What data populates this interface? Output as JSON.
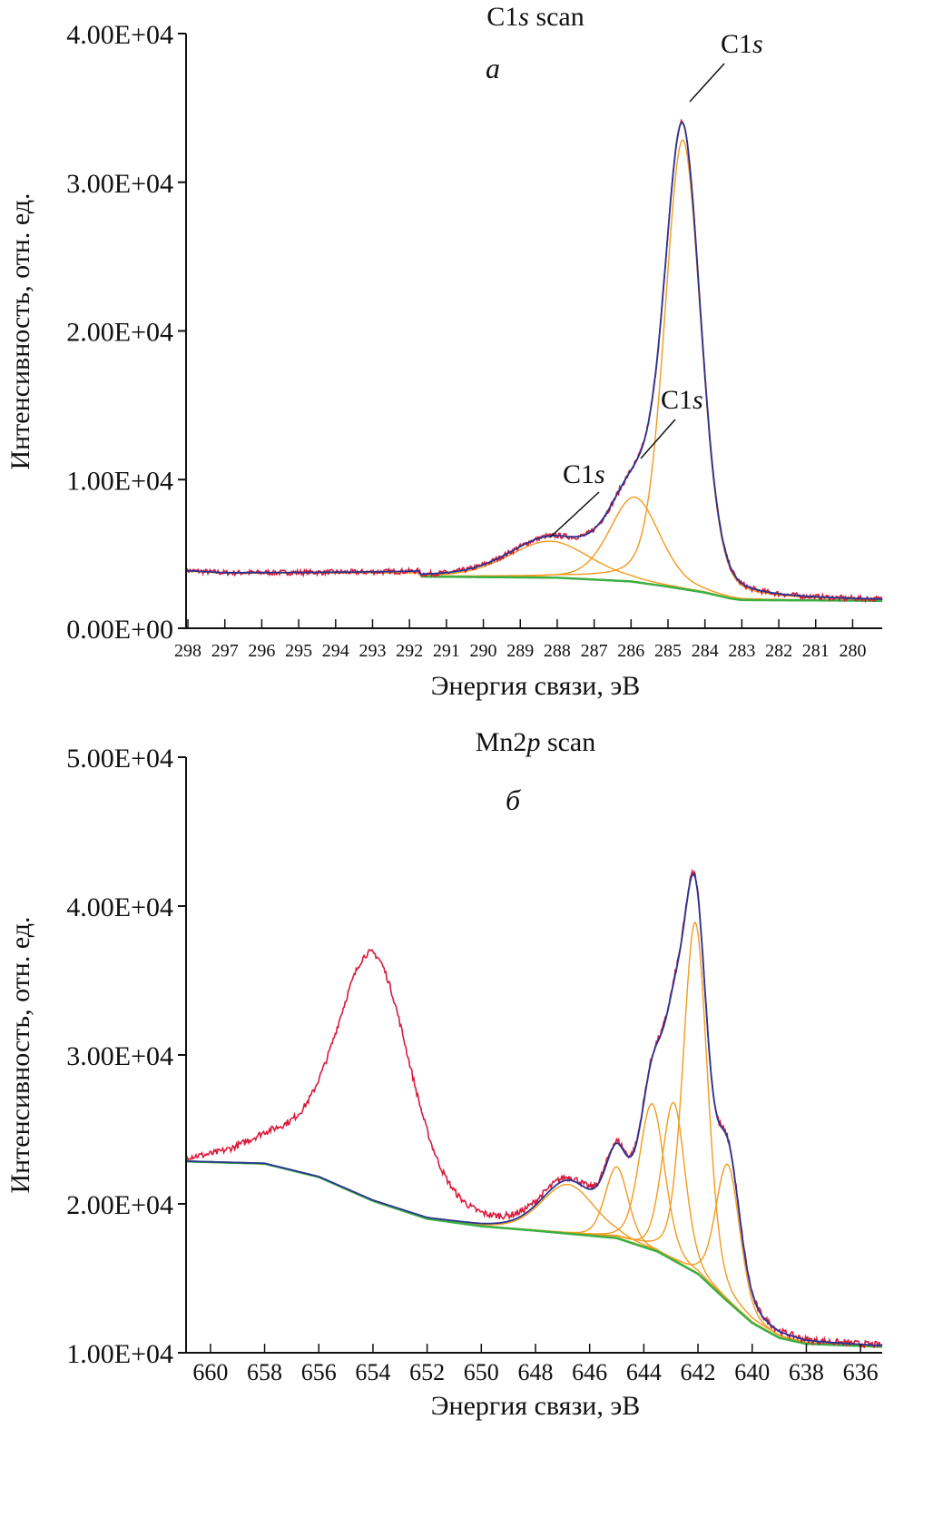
{
  "colors": {
    "raw": "#d81b3c",
    "envelope": "#2a3590",
    "background": "#3cb043",
    "component": "#f39a1e",
    "axis": "#111111",
    "leader": "#111111"
  },
  "chart_data": [
    {
      "type": "line",
      "panel_letter": "а",
      "title_prefix": "C1",
      "title_italic": "s",
      "title_suffix": " scan",
      "xlabel": "Энергия связи, эВ",
      "ylabel": "Интенсивность, отн. ед.",
      "xlim": [
        298.05,
        279.2
      ],
      "ylim": [
        0,
        40000
      ],
      "x_ticks": [
        "298",
        "297",
        "296",
        "295",
        "294",
        "293",
        "292",
        "291",
        "290",
        "289",
        "288",
        "287",
        "286",
        "285",
        "284",
        "283",
        "282",
        "281",
        "280"
      ],
      "y_ticks": [
        {
          "value": 0,
          "label": "0.00E+00"
        },
        {
          "value": 10000,
          "label": "1.00E+04"
        },
        {
          "value": 20000,
          "label": "2.00E+04"
        },
        {
          "value": 30000,
          "label": "3.00E+04"
        },
        {
          "value": 40000,
          "label": "4.00E+04"
        }
      ],
      "background": [
        [
          298.05,
          3850
        ],
        [
          297,
          3700
        ],
        [
          291.75,
          3700
        ],
        [
          291.7,
          3480
        ],
        [
          288,
          3400
        ],
        [
          286,
          3150
        ],
        [
          285,
          2800
        ],
        [
          284,
          2400
        ],
        [
          283.3,
          2000
        ],
        [
          283,
          1900
        ],
        [
          279.2,
          1850
        ]
      ],
      "background_start": 291.7,
      "components": [
        {
          "name": "C1s",
          "center": 284.6,
          "height": 30200,
          "fwhm": 1.15
        },
        {
          "name": "C1s",
          "center": 285.9,
          "height": 5700,
          "fwhm": 1.6
        },
        {
          "name": "C1s",
          "center": 288.2,
          "height": 2450,
          "fwhm": 2.6
        }
      ],
      "raw_extra_peaks": [],
      "noise_amplitude": 180,
      "annotations": [
        {
          "text_prefix": "C1",
          "text_italic": "s",
          "points_to": [
            284.6,
            35000
          ]
        },
        {
          "text_prefix": "C1",
          "text_italic": "s",
          "points_to": [
            285.8,
            11800
          ]
        },
        {
          "text_prefix": "C1",
          "text_italic": "s",
          "points_to": [
            288.0,
            6100
          ]
        }
      ]
    },
    {
      "type": "line",
      "panel_letter": "б",
      "title_prefix": "Mn2",
      "title_italic": "p",
      "title_suffix": " scan",
      "xlabel": "Энергия связи, эВ",
      "ylabel": "Интенсивность, отн. ед.",
      "xlim": [
        660.9,
        635.2
      ],
      "ylim": [
        10000,
        50000
      ],
      "x_ticks": [
        "660",
        "658",
        "656",
        "654",
        "652",
        "650",
        "648",
        "646",
        "644",
        "642",
        "640",
        "638",
        "636"
      ],
      "y_ticks": [
        {
          "value": 10000,
          "label": "1.00E+04"
        },
        {
          "value": 20000,
          "label": "2.00E+04"
        },
        {
          "value": 30000,
          "label": "3.00E+04"
        },
        {
          "value": 40000,
          "label": "4.00E+04"
        },
        {
          "value": 50000,
          "label": "5.00E+04"
        }
      ],
      "background": [
        [
          660.9,
          22850
        ],
        [
          658,
          22700
        ],
        [
          656,
          21800
        ],
        [
          654,
          20200
        ],
        [
          652,
          19000
        ],
        [
          650,
          18500
        ],
        [
          648,
          18200
        ],
        [
          645,
          17700
        ],
        [
          643.5,
          16800
        ],
        [
          642,
          15300
        ],
        [
          641,
          13600
        ],
        [
          640,
          12000
        ],
        [
          639,
          11000
        ],
        [
          638,
          10600
        ],
        [
          635.2,
          10400
        ]
      ],
      "background_start": 660.9,
      "components": [
        {
          "name": "Mn2p",
          "center": 646.8,
          "height": 3300,
          "fwhm": 2.3
        },
        {
          "name": "Mn2p",
          "center": 645.0,
          "height": 4800,
          "fwhm": 1.0
        },
        {
          "name": "Mn2p",
          "center": 643.7,
          "height": 9800,
          "fwhm": 1.1
        },
        {
          "name": "Mn2p",
          "center": 642.9,
          "height": 10600,
          "fwhm": 1.0
        },
        {
          "name": "Mn2p",
          "center": 642.1,
          "height": 23500,
          "fwhm": 1.05
        },
        {
          "name": "Mn2p",
          "center": 640.9,
          "height": 9200,
          "fwhm": 1.05
        }
      ],
      "raw_extra_peaks": [
        {
          "center": 654.0,
          "height": 16500,
          "fwhm": 3.2
        },
        {
          "center": 657.5,
          "height": 1500,
          "fwhm": 3.0
        }
      ],
      "noise_amplitude": 220,
      "annotations": []
    }
  ]
}
